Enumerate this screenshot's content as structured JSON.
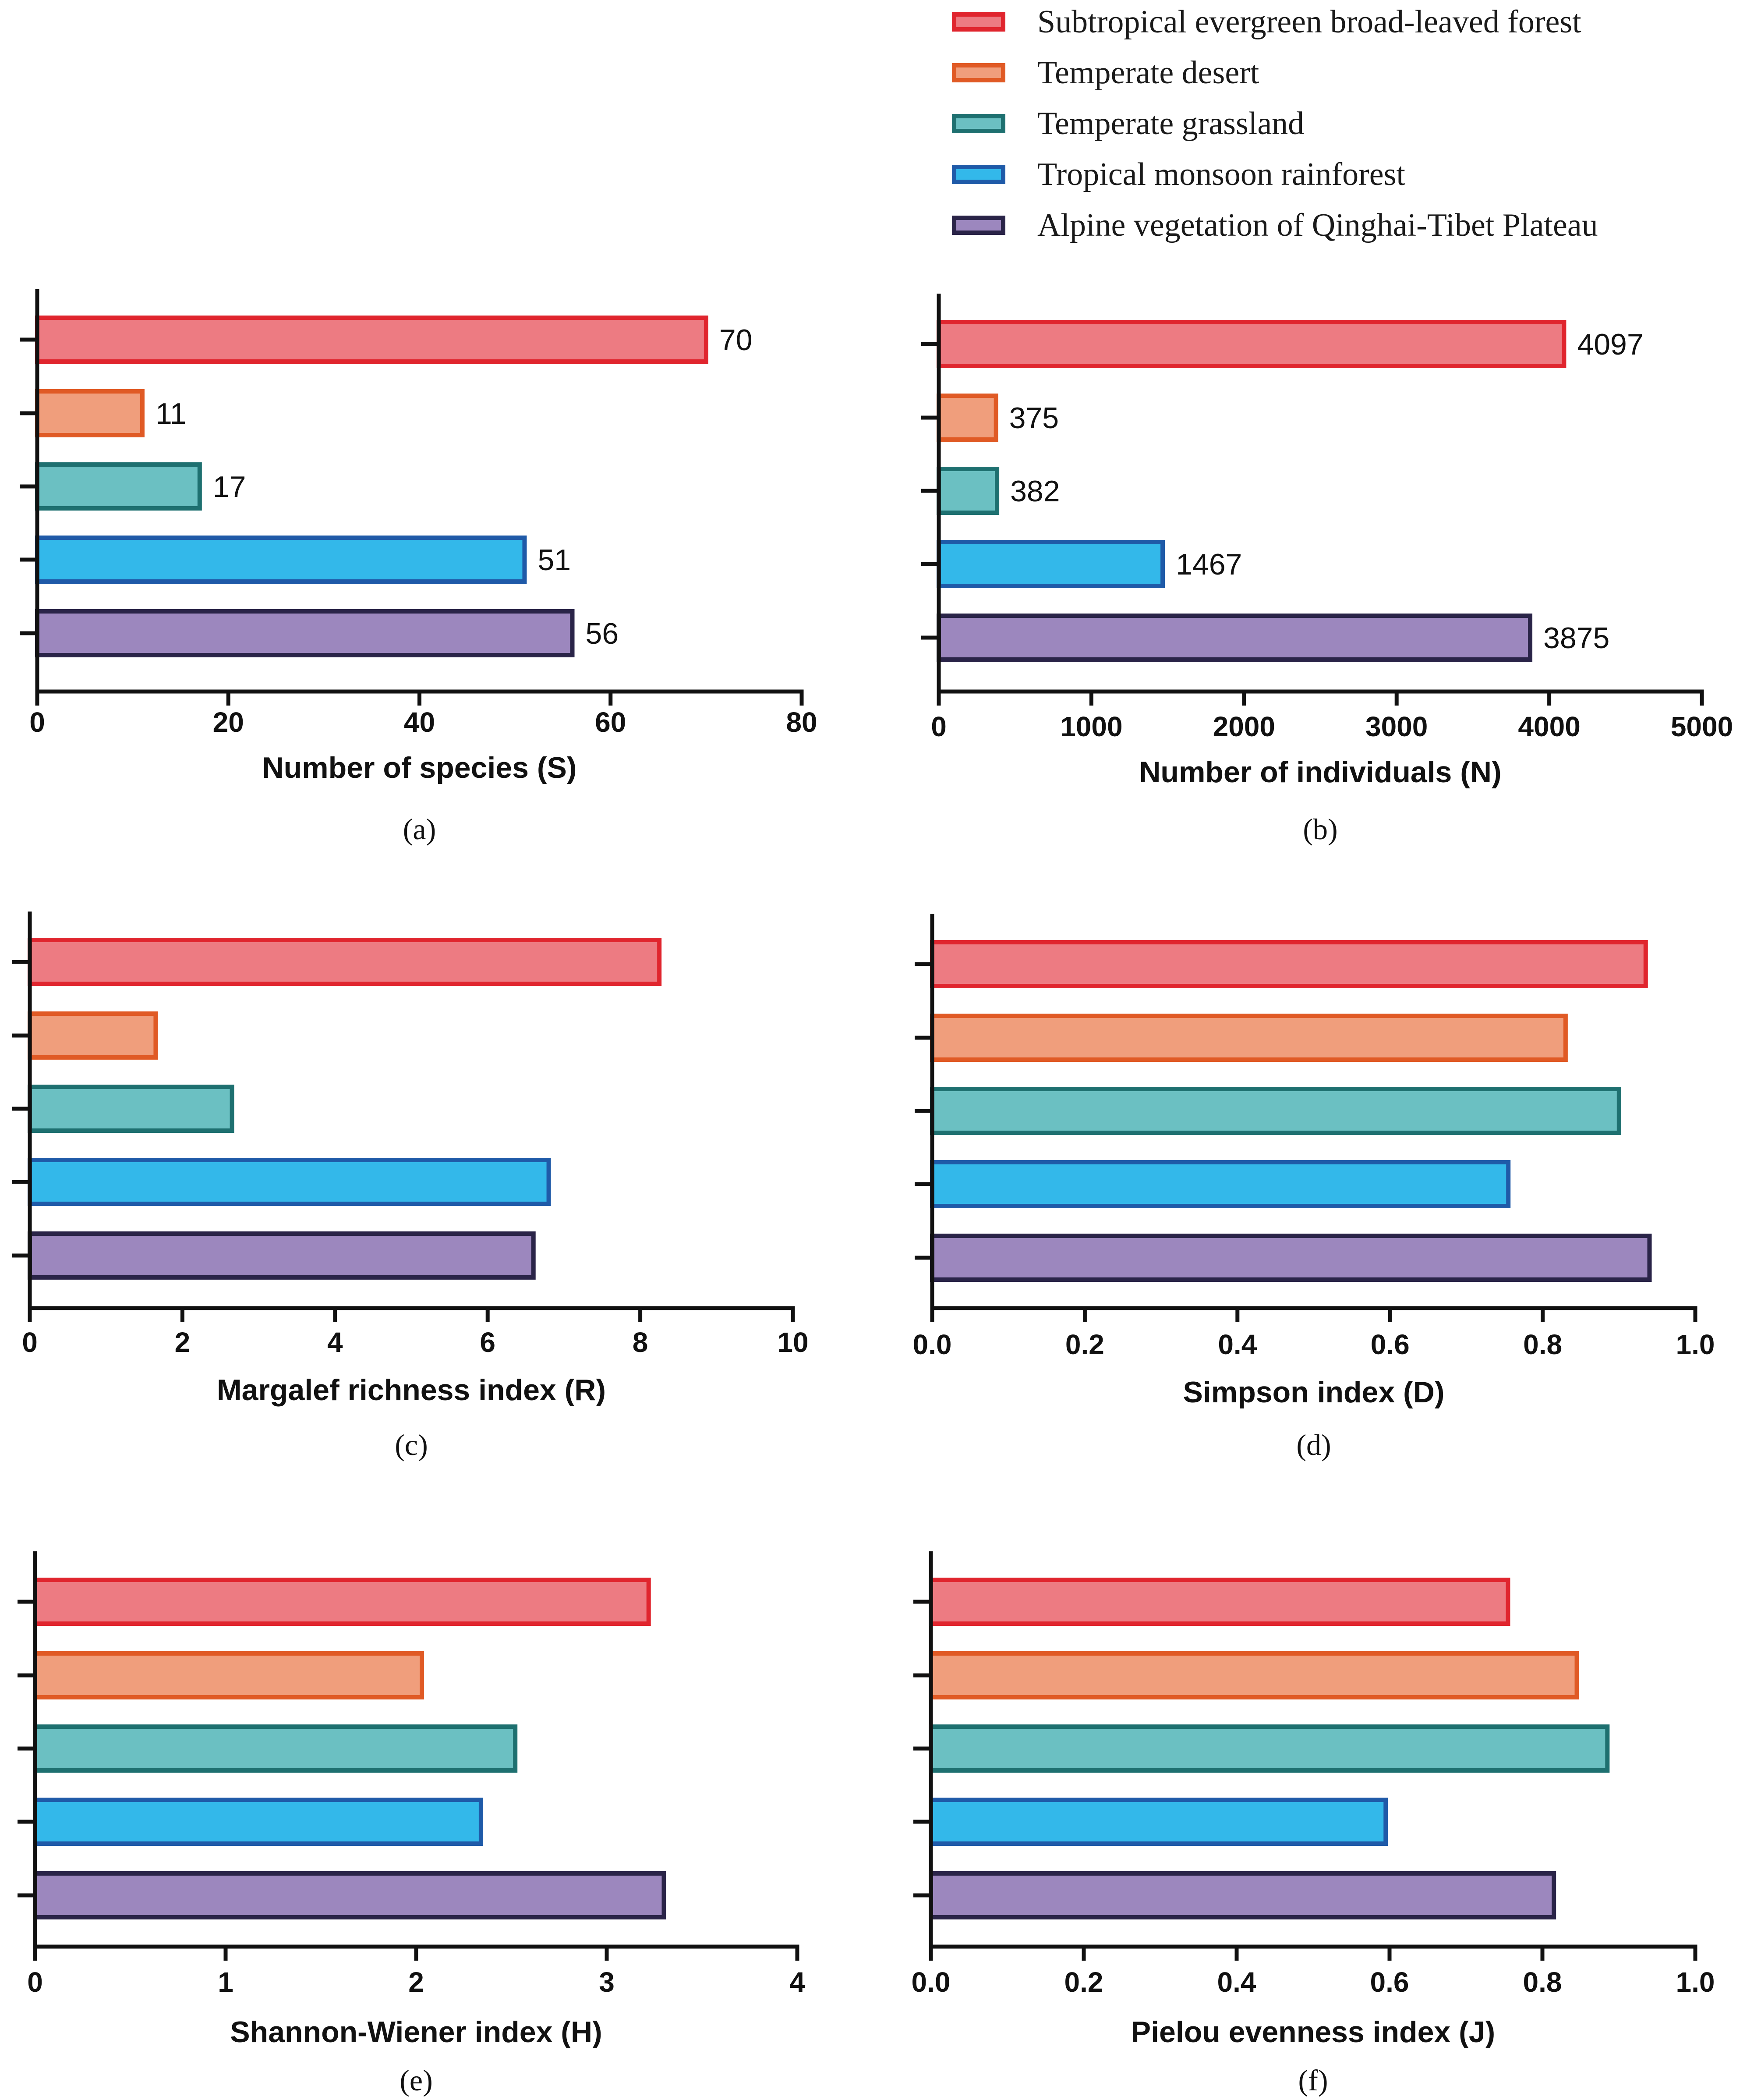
{
  "legend": {
    "entries": [
      {
        "label": "Subtropical evergreen broad-leaved forest",
        "fill": "#ED7B82",
        "stroke": "#E0252E"
      },
      {
        "label": "Temperate desert",
        "fill": "#F09E7C",
        "stroke": "#E05A25"
      },
      {
        "label": "Temperate grassland",
        "fill": "#6BC0C2",
        "stroke": "#1E7070"
      },
      {
        "label": "Tropical monsoon rainforest",
        "fill": "#33B8EA",
        "stroke": "#1F5AA8"
      },
      {
        "label": "Alpine vegetation of Qinghai-Tibet Plateau",
        "fill": "#9C87BE",
        "stroke": "#2A2448"
      }
    ]
  },
  "chart_data": [
    {
      "type": "bar",
      "orientation": "horizontal",
      "panel": "(a)",
      "xlabel": "Number of species (S)",
      "categories": [
        "Subtropical evergreen broad-leaved forest",
        "Temperate desert",
        "Temperate grassland",
        "Tropical monsoon rainforest",
        "Alpine vegetation of Qinghai-Tibet Plateau"
      ],
      "values": [
        70,
        11,
        17,
        51,
        56
      ],
      "data_labels": [
        "70",
        "11",
        "17",
        "51",
        "56"
      ],
      "xlim": [
        0,
        80
      ],
      "xticks": [
        0,
        20,
        40,
        60,
        80
      ],
      "xtick_labels": [
        "0",
        "20",
        "40",
        "60",
        "80"
      ]
    },
    {
      "type": "bar",
      "orientation": "horizontal",
      "panel": "(b)",
      "xlabel": "Number of individuals (N)",
      "categories": [
        "Subtropical evergreen broad-leaved forest",
        "Temperate desert",
        "Temperate grassland",
        "Tropical monsoon rainforest",
        "Alpine vegetation of Qinghai-Tibet Plateau"
      ],
      "values": [
        4097,
        375,
        382,
        1467,
        3875
      ],
      "data_labels": [
        "4097",
        "375",
        "382",
        "1467",
        "3875"
      ],
      "xlim": [
        0,
        5000
      ],
      "xticks": [
        0,
        1000,
        2000,
        3000,
        4000,
        5000
      ],
      "xtick_labels": [
        "0",
        "1000",
        "2000",
        "3000",
        "4000",
        "5000"
      ]
    },
    {
      "type": "bar",
      "orientation": "horizontal",
      "panel": "(c)",
      "xlabel": "Margalef richness index (R)",
      "categories": [
        "Subtropical evergreen broad-leaved forest",
        "Temperate desert",
        "Temperate grassland",
        "Tropical monsoon rainforest",
        "Alpine vegetation of Qinghai-Tibet Plateau"
      ],
      "values": [
        8.25,
        1.65,
        2.65,
        6.8,
        6.6
      ],
      "data_labels": [],
      "xlim": [
        0,
        10
      ],
      "xticks": [
        0,
        2,
        4,
        6,
        8,
        10
      ],
      "xtick_labels": [
        "0",
        "2",
        "4",
        "6",
        "8",
        "10"
      ]
    },
    {
      "type": "bar",
      "orientation": "horizontal",
      "panel": "(d)",
      "xlabel": "Simpson index (D)",
      "categories": [
        "Subtropical evergreen broad-leaved forest",
        "Temperate desert",
        "Temperate grassland",
        "Tropical monsoon rainforest",
        "Alpine vegetation of Qinghai-Tibet Plateau"
      ],
      "values": [
        0.935,
        0.83,
        0.9,
        0.755,
        0.94
      ],
      "data_labels": [],
      "xlim": [
        0,
        1.0
      ],
      "xticks": [
        0,
        0.2,
        0.4,
        0.6,
        0.8,
        1.0
      ],
      "xtick_labels": [
        "0.0",
        "0.2",
        "0.4",
        "0.6",
        "0.8",
        "1.0"
      ]
    },
    {
      "type": "bar",
      "orientation": "horizontal",
      "panel": "(e)",
      "xlabel": "Shannon-Wiener index (H)",
      "categories": [
        "Subtropical evergreen broad-leaved forest",
        "Temperate desert",
        "Temperate grassland",
        "Tropical monsoon rainforest",
        "Alpine vegetation of Qinghai-Tibet Plateau"
      ],
      "values": [
        3.22,
        2.03,
        2.52,
        2.34,
        3.3
      ],
      "data_labels": [],
      "xlim": [
        0,
        4
      ],
      "xticks": [
        0,
        1,
        2,
        3,
        4
      ],
      "xtick_labels": [
        "0",
        "1",
        "2",
        "3",
        "4"
      ]
    },
    {
      "type": "bar",
      "orientation": "horizontal",
      "panel": "(f)",
      "xlabel": "Pielou evenness index (J)",
      "categories": [
        "Subtropical evergreen broad-leaved forest",
        "Temperate desert",
        "Temperate grassland",
        "Tropical monsoon rainforest",
        "Alpine vegetation of Qinghai-Tibet Plateau"
      ],
      "values": [
        0.755,
        0.845,
        0.885,
        0.595,
        0.815
      ],
      "data_labels": [],
      "xlim": [
        0,
        1.0
      ],
      "xticks": [
        0,
        0.2,
        0.4,
        0.6,
        0.8,
        1.0
      ],
      "xtick_labels": [
        "0.0",
        "0.2",
        "0.4",
        "0.6",
        "0.8",
        "1.0"
      ]
    }
  ]
}
